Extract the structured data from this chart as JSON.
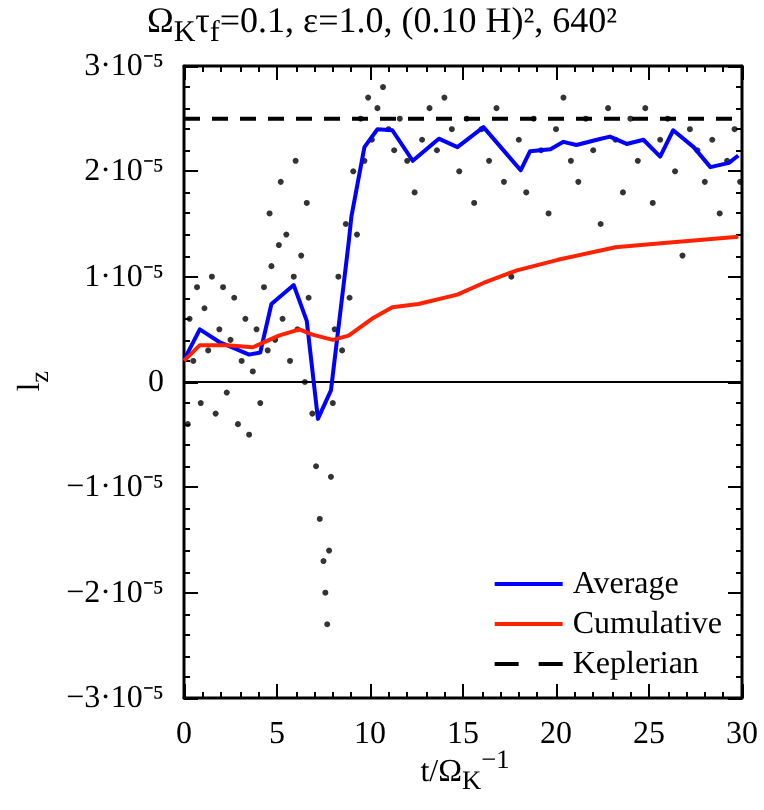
{
  "chart_data": {
    "type": "line",
    "title": "Ω$_{K}$τ$_{f}$=0.1, ε=1.0, (0.10 H)², 640²",
    "xlabel": "t/Ω$_{K}$$^{−1}$",
    "ylabel": "l$_{z}$",
    "xlim": [
      0,
      30
    ],
    "xticks": [
      0,
      5,
      10,
      15,
      20,
      25,
      30
    ],
    "ylim": [
      -3e-05,
      3e-05
    ],
    "yticks": [
      {
        "value": -3e-05,
        "label": "−3·10⁻⁵"
      },
      {
        "value": -2e-05,
        "label": "−2·10⁻⁵"
      },
      {
        "value": -1e-05,
        "label": "−1·10⁻⁵"
      },
      {
        "value": 0,
        "label": "0"
      },
      {
        "value": 1e-05,
        "label": "1·10⁻⁵"
      },
      {
        "value": 2e-05,
        "label": "2·10⁻⁵"
      },
      {
        "value": 3e-05,
        "label": "3·10⁻⁵"
      }
    ],
    "grid": false,
    "legend": "bottom right",
    "ref_lines": [
      {
        "axis": "y",
        "value": 0,
        "color": "#000000",
        "line_style": "solid"
      }
    ],
    "series": [
      {
        "type": "scatter",
        "color": "#000000",
        "marker": "circle",
        "x": [
          0.2,
          0.3,
          0.5,
          0.7,
          0.9,
          1.1,
          1.3,
          1.5,
          1.7,
          1.9,
          2.1,
          2.3,
          2.5,
          2.7,
          2.9,
          3.1,
          3.3,
          3.5,
          3.7,
          3.9,
          4.1,
          4.3,
          4.5,
          4.6,
          4.7,
          4.9,
          5.1,
          5.2,
          5.3,
          5.5,
          5.7,
          5.9,
          6.0,
          6.1,
          6.3,
          6.5,
          6.6,
          6.7,
          6.9,
          7.1,
          7.3,
          7.5,
          7.6,
          7.7,
          7.8,
          7.9,
          8.0,
          8.1,
          8.3,
          8.5,
          8.7,
          8.9,
          9.1,
          9.3,
          9.5,
          9.7,
          9.9,
          10.1,
          10.4,
          10.7,
          11.0,
          11.3,
          11.6,
          12.0,
          12.4,
          12.8,
          13.2,
          13.6,
          14.0,
          14.4,
          14.8,
          15.2,
          15.6,
          16.0,
          16.4,
          16.8,
          17.2,
          17.6,
          18.0,
          18.4,
          18.8,
          19.2,
          19.6,
          20.0,
          20.4,
          20.8,
          21.2,
          21.6,
          22.0,
          22.4,
          22.8,
          23.2,
          23.6,
          24.0,
          24.4,
          24.8,
          25.2,
          25.6,
          26.0,
          26.4,
          26.8,
          27.2,
          27.6,
          28.0,
          28.4,
          28.8,
          29.2,
          29.6,
          29.9
        ],
        "values": [
          -4e-06,
          6e-06,
          2e-06,
          9e-06,
          -2e-06,
          7e-06,
          3e-06,
          1e-05,
          -3e-06,
          5e-06,
          9e-06,
          -1e-06,
          4e-06,
          8e-06,
          -4e-06,
          2e-06,
          6e-06,
          -5e-06,
          1e-06,
          5e-06,
          -2e-06,
          9e-06,
          3e-06,
          1.6e-05,
          1.1e-05,
          4e-06,
          1.3e-05,
          1.9e-05,
          6e-06,
          1.4e-05,
          2e-06,
          1e-05,
          2.1e-05,
          5e-06,
          1.2e-05,
          0.0,
          1.7e-05,
          8e-06,
          -3e-06,
          -8e-06,
          -1.3e-05,
          -1.7e-05,
          -2e-05,
          -2.3e-05,
          -1.6e-05,
          -9e-06,
          -2e-06,
          5e-06,
          1e-05,
          3e-06,
          1.5e-05,
          8e-06,
          2e-05,
          1.4e-05,
          2.5e-05,
          2.1e-05,
          2.7e-05,
          2.3e-05,
          2.6e-05,
          2.8e-05,
          2.4e-05,
          2.2e-05,
          2.5e-05,
          2.1e-05,
          1.8e-05,
          2.3e-05,
          2.6e-05,
          2.2e-05,
          2.7e-05,
          2.4e-05,
          2e-05,
          2.5e-05,
          1.7e-05,
          2.4e-05,
          2.1e-05,
          2.6e-05,
          1.9e-05,
          1e-05,
          2.3e-05,
          1.8e-05,
          2.5e-05,
          2.2e-05,
          1.6e-05,
          2.4e-05,
          2.7e-05,
          2.1e-05,
          1.9e-05,
          2.5e-05,
          2.2e-05,
          1.5e-05,
          2.6e-05,
          2.3e-05,
          1.8e-05,
          2.5e-05,
          2.1e-05,
          2.6e-05,
          1.7e-05,
          2.3e-05,
          2.5e-05,
          2e-05,
          1.2e-05,
          2.4e-05,
          2.2e-05,
          1.9e-05,
          2.3e-05,
          1.6e-05,
          2.1e-05,
          2.4e-05,
          1.9e-05
        ]
      },
      {
        "name": "Average",
        "color": "#0000ff",
        "marker": "none",
        "line_style": "solid",
        "x": [
          0.03,
          0.85,
          1.9,
          3.5,
          4.1,
          4.7,
          5.9,
          6.6,
          7.2,
          7.9,
          8.85,
          9.0,
          9.7,
          10.4,
          11.2,
          12.3,
          13.7,
          14.7,
          16.1,
          18.1,
          18.6,
          19.7,
          20.4,
          21.1,
          22.2,
          22.9,
          23.8,
          24.7,
          25.6,
          26.3,
          27.4,
          28.3,
          29.3,
          29.8
        ],
        "values": [
          2.2e-06,
          5e-06,
          3.8e-06,
          2.6e-06,
          2.8e-06,
          7.4e-06,
          9.2e-06,
          5.8e-06,
          -3.5e-06,
          -8e-07,
          1.32e-05,
          1.57e-05,
          2.23e-05,
          2.4e-05,
          2.39e-05,
          2.1e-05,
          2.31e-05,
          2.23e-05,
          2.42e-05,
          2.01e-05,
          2.19e-05,
          2.21e-05,
          2.28e-05,
          2.25e-05,
          2.3e-05,
          2.33e-05,
          2.26e-05,
          2.3e-05,
          2.14e-05,
          2.39e-05,
          2.23e-05,
          2.04e-05,
          2.08e-05,
          2.15e-05
        ]
      },
      {
        "name": "Cumulative",
        "color": "#ff2200",
        "marker": "none",
        "line_style": "solid",
        "x": [
          0,
          0.85,
          2.3,
          3.7,
          5.1,
          6.2,
          6.9,
          8.0,
          8.85,
          10.1,
          11.2,
          12.6,
          14.7,
          16.1,
          17.9,
          20.1,
          23.2,
          25.8,
          29.8
        ],
        "values": [
          2e-06,
          3.5e-06,
          3.5e-06,
          3.3e-06,
          4.4e-06,
          5e-06,
          4.5e-06,
          4e-06,
          4.4e-06,
          6e-06,
          7.1e-06,
          7.4e-06,
          8.3e-06,
          9.4e-06,
          1.06e-05,
          1.16e-05,
          1.28e-05,
          1.32e-05,
          1.38e-05
        ]
      },
      {
        "name": "Keplerian",
        "color": "#000000",
        "marker": "none",
        "line_style": "dashed",
        "x": [
          0,
          30
        ],
        "values": [
          2.5e-05,
          2.5e-05
        ]
      }
    ]
  }
}
